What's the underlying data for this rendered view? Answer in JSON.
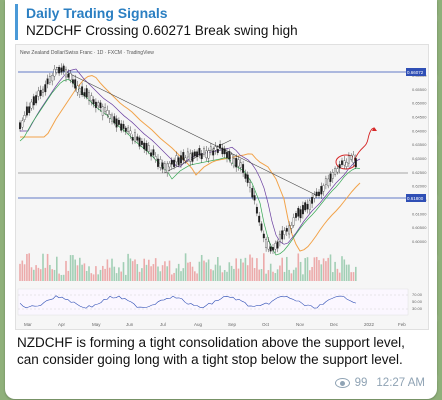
{
  "post": {
    "channel_title": "Daily Trading Signals",
    "reply_text": "NZDCHF Crossing 0.60271 Break swing high",
    "caption": "NZDCHF is forming a tight consolidation above the support level, can consider going long with a tight stop below the support level.",
    "views": "99",
    "time": "12:27 AM"
  },
  "chart": {
    "header_text": "New Zealand Dollar/Swiss Franc · 1D · FXCM · TradingView",
    "months": [
      "Mar",
      "Apr",
      "May",
      "Jun",
      "Jul",
      "Aug",
      "Sep",
      "Oct",
      "Nov",
      "Dec",
      "2022",
      "Feb"
    ],
    "price_ticks": [
      "0.66000",
      "0.65500",
      "0.65000",
      "0.64500",
      "0.64000",
      "0.63500",
      "0.63000",
      "0.62500",
      "0.62000",
      "0.61500",
      "0.61000",
      "0.60500",
      "0.60000"
    ],
    "resistance_label": "0.66072",
    "support_label": "0.61800",
    "rsi_ticks": [
      "70.00",
      "50.00",
      "30.00"
    ],
    "colors": {
      "candle": "#1a1a1a",
      "resistance": "#2f4fb5",
      "ma_orange": "#f2a34a",
      "ma_purple": "#6a3fa0",
      "ma_green": "#36a853",
      "forecast": "#d62828",
      "volume_up": "#7fbf9a",
      "volume_down": "#e88a8a",
      "rsi": "#2f4fb5"
    }
  }
}
